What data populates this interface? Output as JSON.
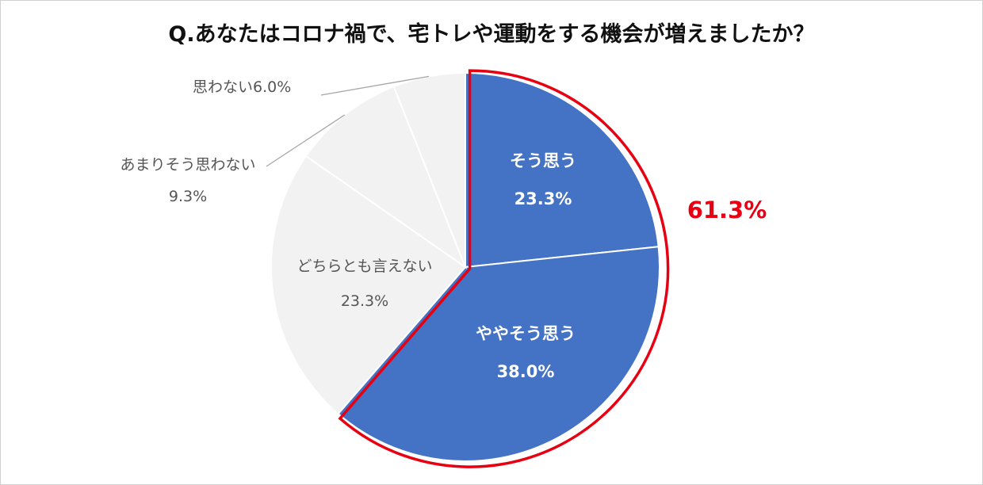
{
  "chart_data": {
    "type": "pie",
    "title": "Q.あなたはコロナ禍で、宅トレや運動をする機会が増えましたか？",
    "slices": [
      {
        "label": "そう思う",
        "value": 23.3,
        "value_label": "23.3%",
        "color": "#4472C4"
      },
      {
        "label": "ややそう思う",
        "value": 38.0,
        "value_label": "38.0%",
        "color": "#4472C4"
      },
      {
        "label": "どちらとも言えない",
        "value": 23.3,
        "value_label": "23.3%",
        "color": "#F2F2F2"
      },
      {
        "label": "あまりそう思わない",
        "value": 9.3,
        "value_label": "9.3%",
        "color": "#F2F2F2"
      },
      {
        "label": "思わない",
        "value": 6.0,
        "value_label": "6.0%",
        "color": "#F2F2F2"
      }
    ],
    "start_angle": "12 o'clock",
    "direction": "clockwise",
    "highlight": {
      "text": "61.3%",
      "color": "#E60012",
      "covers": [
        "そう思う",
        "ややそう思う"
      ]
    },
    "outline_color": "#E60012",
    "legend": "none"
  }
}
